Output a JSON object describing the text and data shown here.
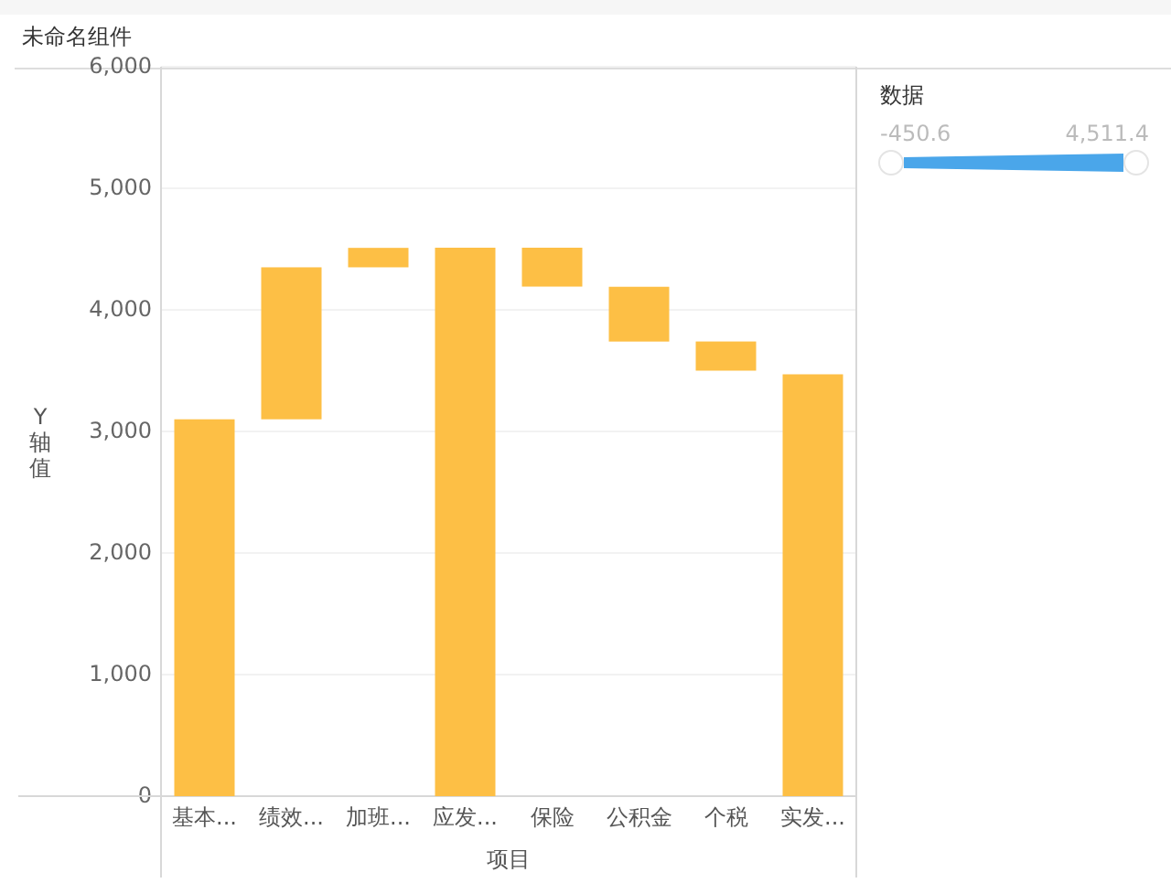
{
  "chart_data": {
    "type": "bar",
    "title": "未命名组件",
    "xlabel": "项目",
    "ylabel": "Y轴值",
    "categories": [
      "基本...",
      "绩效...",
      "加班...",
      "应发...",
      "保险",
      "公积金",
      "个税",
      "实发..."
    ],
    "values": [
      3100,
      1250,
      160,
      4511.4,
      -320,
      -450.6,
      -240,
      3470
    ],
    "base": [
      0,
      3100,
      4350,
      0,
      4511.4,
      4190,
      3740,
      0
    ],
    "color": "#fdbf45",
    "ylim": [
      0,
      6000
    ],
    "yticks": [
      0,
      {
        "value": 1000,
        "label": "1,000"
      },
      {
        "value": 2000,
        "label": "2,000"
      },
      {
        "value": 3000,
        "label": "3,000"
      },
      {
        "value": 4000,
        "label": "4,000"
      },
      {
        "value": 5000,
        "label": "5,000"
      },
      {
        "value": 6000,
        "label": "6,000"
      }
    ],
    "grid": "y",
    "annotations": [
      "数据",
      "-450.6",
      "4,511.4"
    ]
  }
}
